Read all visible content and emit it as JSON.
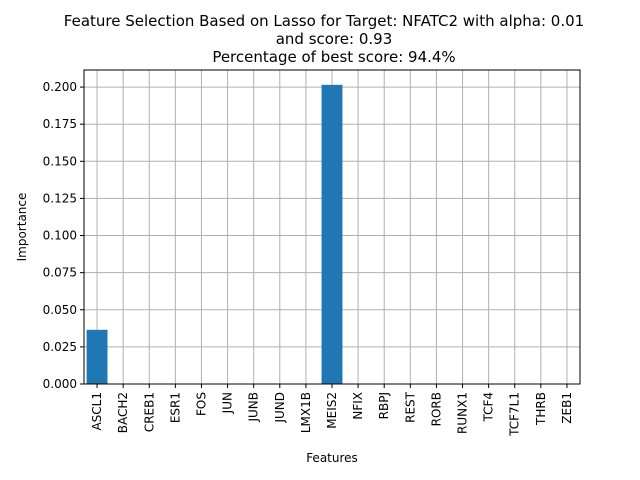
{
  "chart_data": {
    "type": "bar",
    "title_lines": [
      "Feature Selection Based on Lasso for Target: NFATC2 with alpha: 0.01",
      "and score: 0.93",
      " Percentage of best score: 94.4%"
    ],
    "xlabel": "Features",
    "ylabel": "Importance",
    "categories": [
      "ASCL1",
      "BACH2",
      "CREB1",
      "ESR1",
      "FOS",
      "JUN",
      "JUNB",
      "JUND",
      "LMX1B",
      "MEIS2",
      "NFIX",
      "RBPJ",
      "REST",
      "RORB",
      "RUNX1",
      "TCF4",
      "TCF7L1",
      "THRB",
      "ZEB1"
    ],
    "values": [
      0.0365,
      0,
      0,
      0,
      0,
      0,
      0,
      0,
      0,
      0.2015,
      0,
      0,
      0,
      0,
      0,
      0,
      0,
      0,
      0
    ],
    "ylim": [
      0,
      0.2115
    ],
    "yticks": [
      "0.000",
      "0.025",
      "0.050",
      "0.075",
      "0.100",
      "0.125",
      "0.150",
      "0.175",
      "0.200"
    ],
    "ytick_values": [
      0,
      0.025,
      0.05,
      0.075,
      0.1,
      0.125,
      0.15,
      0.175,
      0.2
    ],
    "grid": true,
    "bar_color": "#1f77b4",
    "grid_color": "#b0b0b0"
  }
}
